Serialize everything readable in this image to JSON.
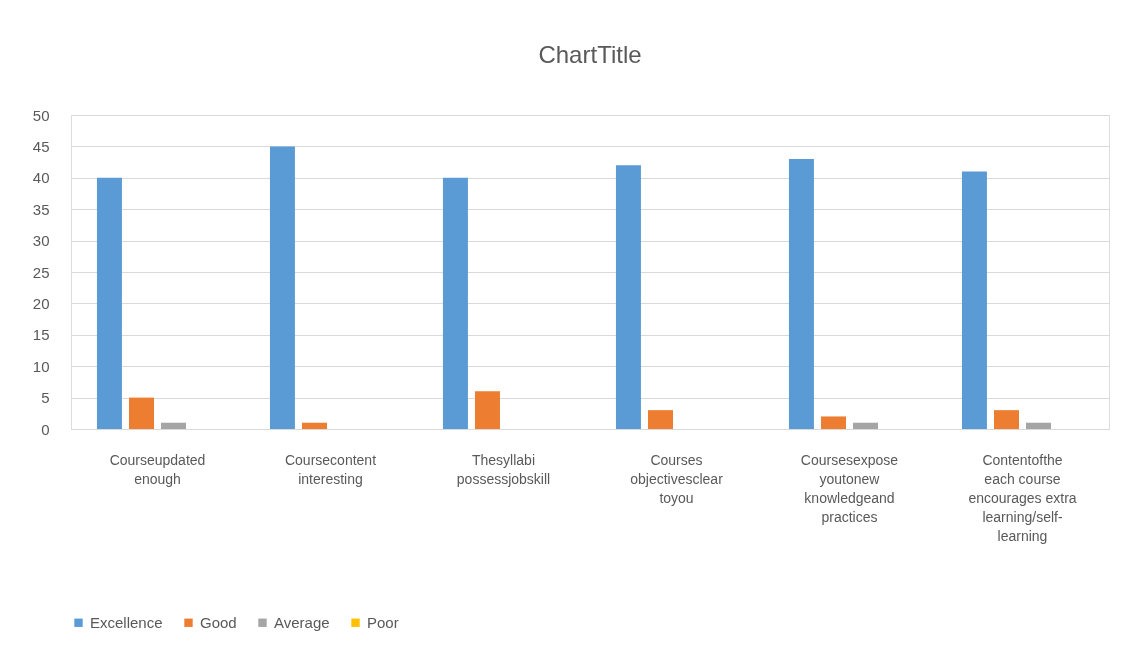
{
  "chart_data": {
    "type": "bar",
    "title": "ChartTitle",
    "categories": [
      "Courseupdated enough",
      "Coursecontent interesting",
      "Thesyllabi possessjobskill",
      "Courses objectivesclear toyou",
      "Coursesexpose youtonew knowledgeand practices",
      "Contentofthe each course encourages extra learning/self-learning"
    ],
    "series": [
      {
        "name": "Excellence",
        "color": "#5b9bd5",
        "values": [
          40,
          45,
          40,
          42,
          43,
          41
        ]
      },
      {
        "name": "Good",
        "color": "#ed7d31",
        "values": [
          5,
          1,
          6,
          3,
          2,
          3
        ]
      },
      {
        "name": "Average",
        "color": "#a5a5a5",
        "values": [
          1,
          0,
          0,
          0,
          1,
          1
        ]
      },
      {
        "name": "Poor",
        "color": "#ffc000",
        "values": [
          0,
          0,
          0,
          0,
          0,
          0
        ]
      }
    ],
    "ylim": [
      0,
      50
    ],
    "yticks": [
      0,
      5,
      10,
      15,
      20,
      25,
      30,
      35,
      40,
      45,
      50
    ],
    "grid": "y",
    "legend": "bottom"
  }
}
